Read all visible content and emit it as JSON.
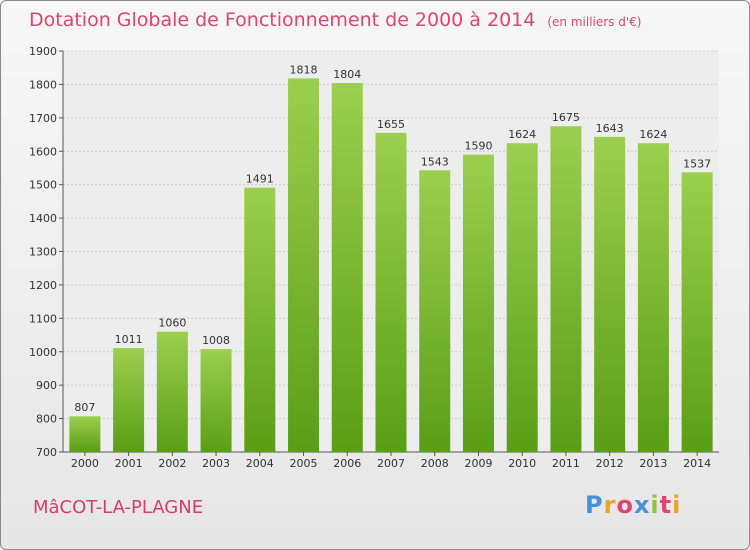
{
  "header": {
    "title": "Dotation Globale de Fonctionnement de 2000 à 2014",
    "units": "(en milliers d'€)"
  },
  "footer": {
    "commune": "MâCOT-LA-PLAGNE",
    "logo": "Proxiti"
  },
  "colors": {
    "bar_top": "#9ccf4f",
    "bar_bottom": "#5a9e14",
    "title": "#e0446f",
    "logo_letters": [
      "#4a90d9",
      "#e8a52a",
      "#e0446f",
      "#4a90d9",
      "#8cc63f",
      "#e0446f",
      "#e8a52a"
    ]
  },
  "chart_data": {
    "type": "bar",
    "categories": [
      "2000",
      "2001",
      "2002",
      "2003",
      "2004",
      "2005",
      "2006",
      "2007",
      "2008",
      "2009",
      "2010",
      "2011",
      "2012",
      "2013",
      "2014"
    ],
    "values": [
      807,
      1011,
      1060,
      1008,
      1491,
      1818,
      1804,
      1655,
      1543,
      1590,
      1624,
      1675,
      1643,
      1624,
      1537
    ],
    "yticks": [
      700,
      800,
      900,
      1000,
      1100,
      1200,
      1300,
      1400,
      1500,
      1600,
      1700,
      1800,
      1900
    ],
    "ylim": [
      700,
      1900
    ],
    "grid": true,
    "xlabel": "",
    "ylabel": ""
  }
}
